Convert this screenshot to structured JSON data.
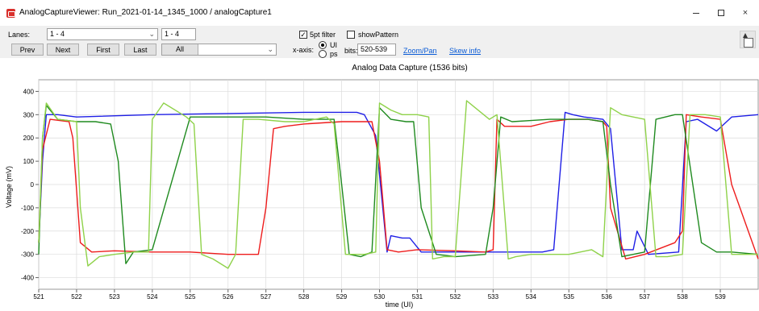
{
  "window": {
    "title": "AnalogCaptureViewer: Run_2021-01-14_1345_1000 / analogCapture1",
    "min_symbol": "–",
    "max_symbol": "□",
    "close_symbol": "×"
  },
  "toolbar": {
    "lanes_label": "Lanes:",
    "lanes_value": "1 - 4",
    "lanes_range_value": "1 - 4",
    "prev_label": "Prev",
    "next_label": "Next",
    "first_label": "First",
    "last_label": "Last",
    "all_label": "All",
    "filter_label": "5pt filter",
    "filter_checked": true,
    "show_pattern_label": "showPattern",
    "show_pattern_checked": false,
    "xaxis_label": "x-axis:",
    "xaxis_options": [
      "UI",
      "ps"
    ],
    "xaxis_selected": "UI",
    "bits_label": "bits:",
    "bits_value": "520-539",
    "zoom_pan_label": "Zoom/Pan",
    "skew_info_label": "Skew info",
    "icons": [
      "app-icon",
      "chevron-down-icon",
      "chart-tool-icon"
    ]
  },
  "colors": {
    "blue": "#1f1fe6",
    "red": "#ee1c1c",
    "dark_green": "#1f8a1f",
    "light_green": "#8fd24a",
    "grid": "#dcdcdc",
    "accent": "#0b5cd6"
  },
  "chart_data": {
    "type": "line",
    "title": "Analog Data Capture (1536 bits)",
    "xlabel": "time (UI)",
    "ylabel": "Voltage (mV)",
    "xlim": [
      521,
      540
    ],
    "ylim": [
      -450,
      450
    ],
    "xticks": [
      521,
      522,
      523,
      524,
      525,
      526,
      527,
      528,
      529,
      530,
      531,
      532,
      533,
      534,
      535,
      536,
      537,
      538,
      539
    ],
    "yticks": [
      400,
      300,
      200,
      100,
      0,
      -100,
      -200,
      -300,
      -400
    ],
    "grid": true,
    "legend": "none",
    "series": [
      {
        "color": "#1f1fe6",
        "x": [
          521.0,
          521.1,
          521.2,
          521.5,
          522.0,
          524.0,
          526.0,
          528.0,
          529.4,
          529.6,
          529.9,
          530.2,
          530.3,
          530.6,
          530.8,
          531.1,
          532.0,
          533.0,
          533.3,
          533.7,
          534.3,
          534.6,
          534.9,
          535.1,
          535.4,
          535.9,
          536.1,
          536.4,
          536.7,
          536.8,
          537.1,
          537.9,
          538.1,
          538.4,
          538.9,
          539.3,
          540.0
        ],
        "y": [
          -250,
          100,
          300,
          300,
          290,
          300,
          305,
          310,
          310,
          300,
          210,
          -290,
          -220,
          -230,
          -230,
          -290,
          -290,
          -290,
          -290,
          -290,
          -290,
          -280,
          310,
          300,
          290,
          280,
          240,
          -280,
          -280,
          -200,
          -300,
          -290,
          270,
          280,
          230,
          290,
          300
        ]
      },
      {
        "color": "#ee1c1c",
        "x": [
          521.0,
          521.1,
          521.3,
          521.8,
          521.9,
          522.1,
          522.4,
          523.0,
          524.0,
          525.0,
          526.0,
          526.8,
          527.0,
          527.2,
          527.5,
          528.0,
          529.0,
          529.8,
          530.0,
          530.2,
          530.5,
          531.0,
          532.0,
          532.8,
          533.0,
          533.1,
          533.3,
          534.0,
          534.5,
          535.0,
          535.5,
          535.9,
          536.0,
          536.1,
          536.5,
          537.0,
          537.8,
          538.0,
          538.1,
          538.5,
          539.0,
          539.3,
          540.0
        ],
        "y": [
          -250,
          150,
          280,
          270,
          200,
          -250,
          -290,
          -285,
          -290,
          -290,
          -300,
          -300,
          -100,
          240,
          250,
          260,
          270,
          270,
          100,
          -280,
          -290,
          -280,
          -285,
          -290,
          -280,
          280,
          250,
          250,
          270,
          280,
          280,
          270,
          250,
          -100,
          -320,
          -300,
          -250,
          -200,
          300,
          290,
          280,
          0,
          -320
        ]
      },
      {
        "color": "#1f8a1f",
        "x": [
          521.0,
          521.1,
          521.2,
          521.5,
          522.0,
          522.5,
          522.9,
          523.1,
          523.3,
          523.5,
          524.0,
          525.0,
          526.0,
          527.0,
          528.0,
          528.8,
          529.0,
          529.2,
          529.5,
          529.8,
          530.0,
          530.3,
          530.7,
          530.9,
          531.1,
          531.5,
          532.0,
          532.8,
          533.0,
          533.2,
          533.5,
          534.0,
          534.5,
          535.0,
          535.5,
          535.9,
          536.1,
          536.4,
          536.7,
          537.0,
          537.3,
          537.8,
          538.0,
          538.5,
          538.9,
          539.3,
          540.0
        ],
        "y": [
          -300,
          200,
          340,
          280,
          270,
          270,
          260,
          100,
          -340,
          -290,
          -280,
          290,
          290,
          290,
          280,
          280,
          0,
          -300,
          -310,
          -290,
          330,
          280,
          270,
          270,
          -100,
          -300,
          -310,
          -300,
          -100,
          290,
          270,
          275,
          280,
          280,
          280,
          270,
          0,
          -310,
          -300,
          -290,
          280,
          300,
          300,
          -250,
          -290,
          -290,
          -300
        ]
      },
      {
        "color": "#8fd24a",
        "x": [
          521.0,
          521.1,
          521.2,
          521.5,
          522.0,
          522.1,
          522.3,
          522.6,
          523.0,
          523.5,
          523.9,
          524.0,
          524.3,
          524.9,
          525.1,
          525.3,
          525.6,
          526.0,
          526.2,
          526.4,
          526.8,
          527.5,
          528.0,
          528.6,
          528.8,
          529.1,
          529.6,
          529.9,
          530.0,
          530.3,
          530.6,
          531.0,
          531.3,
          531.4,
          531.7,
          532.0,
          532.3,
          532.9,
          533.1,
          533.4,
          533.6,
          534.0,
          535.0,
          535.6,
          535.9,
          536.1,
          536.4,
          536.7,
          537.0,
          537.3,
          537.6,
          538.0,
          538.2,
          538.6,
          539.0,
          539.3,
          540.0
        ],
        "y": [
          -250,
          200,
          350,
          280,
          270,
          -100,
          -350,
          -310,
          -300,
          -290,
          -290,
          280,
          350,
          290,
          260,
          -300,
          -320,
          -360,
          -300,
          280,
          280,
          270,
          270,
          290,
          260,
          -300,
          -300,
          -290,
          350,
          320,
          300,
          300,
          290,
          -320,
          -310,
          -310,
          360,
          280,
          300,
          -320,
          -310,
          -300,
          -300,
          -280,
          -310,
          330,
          300,
          290,
          280,
          -310,
          -310,
          -300,
          300,
          300,
          290,
          -300,
          -300
        ]
      }
    ]
  }
}
